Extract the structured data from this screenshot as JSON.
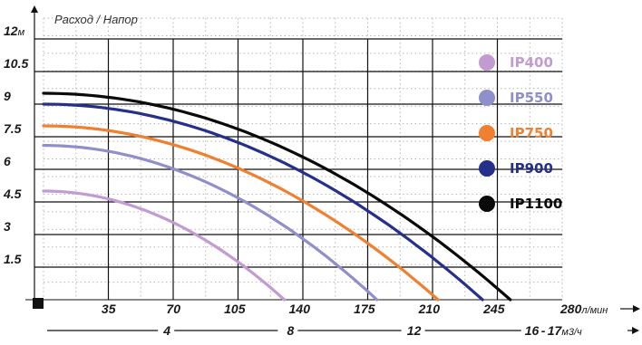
{
  "chart_data": {
    "type": "line",
    "title": "",
    "ylabel": "Расход / Напор",
    "y_unit": "м",
    "y_ticks": [
      {
        "value": 12,
        "label": "12"
      },
      {
        "value": 10.5,
        "label": "10.5"
      },
      {
        "value": 9,
        "label": "9"
      },
      {
        "value": 7.5,
        "label": "7.5"
      },
      {
        "value": 6,
        "label": "6"
      },
      {
        "value": 4.5,
        "label": "4.5"
      },
      {
        "value": 3,
        "label": "3"
      },
      {
        "value": 1.5,
        "label": "1.5"
      }
    ],
    "ylim": [
      0,
      12
    ],
    "x_unit": "л/мин",
    "x_ticks": [
      {
        "value": 35,
        "label": "35"
      },
      {
        "value": 70,
        "label": "70"
      },
      {
        "value": 105,
        "label": "105"
      },
      {
        "value": 140,
        "label": "140"
      },
      {
        "value": 175,
        "label": "175"
      },
      {
        "value": 210,
        "label": "210"
      },
      {
        "value": 245,
        "label": "245"
      },
      {
        "value": 280,
        "label": "280"
      }
    ],
    "xlim": [
      0,
      280
    ],
    "x2_unit": "м3/ч",
    "x2_ticks": [
      {
        "value": 4,
        "label": "4"
      },
      {
        "value": 8,
        "label": "8"
      },
      {
        "value": 12,
        "label": "12"
      },
      {
        "value": 16,
        "label": "16"
      },
      {
        "value": 17,
        "label": "17"
      }
    ],
    "grid": true,
    "legend_position": "right",
    "series": [
      {
        "name": "IP400",
        "color": "#c39bd3",
        "shutoff_head": 5.0,
        "max_flow": 130
      },
      {
        "name": "IP550",
        "color": "#8f8fcb",
        "shutoff_head": 7.1,
        "max_flow": 180
      },
      {
        "name": "IP750",
        "color": "#f07f30",
        "shutoff_head": 8.0,
        "max_flow": 213
      },
      {
        "name": "IP900",
        "color": "#252f8c",
        "shutoff_head": 9.0,
        "max_flow": 237
      },
      {
        "name": "IP1100",
        "color": "#0a0a0a",
        "shutoff_head": 9.5,
        "max_flow": 252
      }
    ]
  }
}
